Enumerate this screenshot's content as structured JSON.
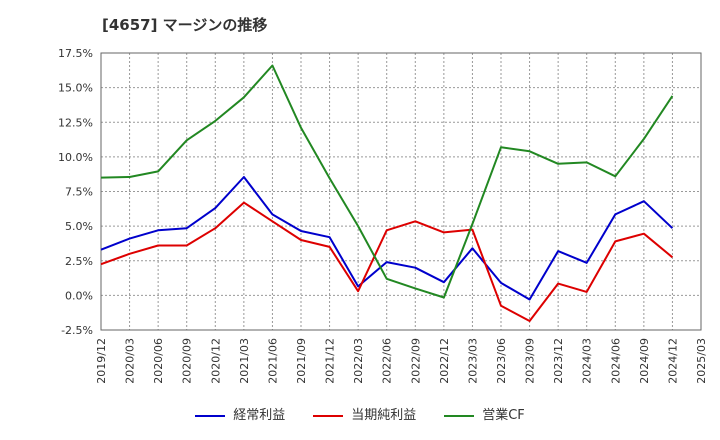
{
  "chart_data": {
    "type": "line",
    "title": "[4657]  マージンの推移",
    "xlabel": "",
    "ylabel": "",
    "ylim": [
      -2.5,
      17.5
    ],
    "y_ticks": [
      -2.5,
      0,
      2.5,
      5,
      7.5,
      10,
      12.5,
      15,
      17.5
    ],
    "y_tick_labels": [
      "-2.5%",
      "0.0%",
      "2.5%",
      "5.0%",
      "7.5%",
      "10.0%",
      "12.5%",
      "15.0%",
      "17.5%"
    ],
    "x_tick_labels": [
      "2019/12",
      "2020/03",
      "2020/06",
      "2020/09",
      "2020/12",
      "2021/03",
      "2021/06",
      "2021/09",
      "2021/12",
      "2022/03",
      "2022/06",
      "2022/09",
      "2022/12",
      "2023/03",
      "2023/06",
      "2023/09",
      "2023/12",
      "2024/03",
      "2024/06",
      "2024/09",
      "2024/12",
      "2025/03"
    ],
    "grid": true,
    "legend_position": "bottom",
    "series": [
      {
        "name": "経常利益",
        "color": "#0000cc",
        "values": [
          3.3,
          4.1,
          4.7,
          4.85,
          6.3,
          8.55,
          5.85,
          4.65,
          4.2,
          0.65,
          2.4,
          2.0,
          0.95,
          3.4,
          0.9,
          -0.3,
          3.2,
          2.35,
          5.85,
          6.8,
          4.85
        ]
      },
      {
        "name": "当期純利益",
        "color": "#dd0000",
        "values": [
          2.25,
          3.0,
          3.6,
          3.6,
          4.85,
          6.7,
          5.35,
          4.0,
          3.5,
          0.3,
          4.7,
          5.35,
          4.55,
          4.75,
          -0.75,
          -1.85,
          0.85,
          0.25,
          3.9,
          4.45,
          2.75
        ]
      },
      {
        "name": "営業CF",
        "color": "#228822",
        "values": [
          8.5,
          8.55,
          8.95,
          11.2,
          12.6,
          14.3,
          16.6,
          12.1,
          8.45,
          5.0,
          1.2,
          0.5,
          -0.15,
          5.15,
          10.7,
          10.4,
          9.5,
          9.6,
          8.6,
          11.3,
          14.4
        ]
      }
    ]
  }
}
